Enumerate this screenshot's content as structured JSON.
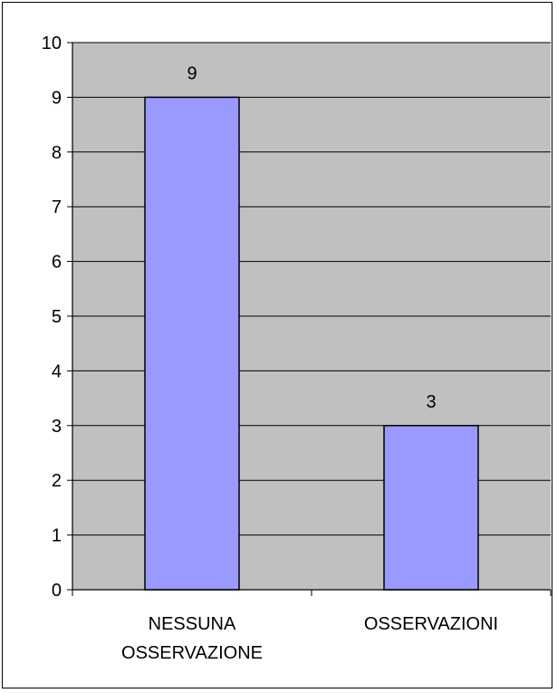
{
  "chart_data": {
    "type": "bar",
    "categories": [
      [
        "NESSUNA",
        "OSSERVAZIONE"
      ],
      [
        "OSSERVAZIONI"
      ]
    ],
    "values": [
      9,
      3
    ],
    "data_labels": [
      "9",
      "3"
    ],
    "ylim": [
      0,
      10
    ],
    "yticks": [
      0,
      1,
      2,
      3,
      4,
      5,
      6,
      7,
      8,
      9,
      10
    ],
    "grid": true,
    "legend": "none",
    "colors": {
      "bar_fill": "#9999ff",
      "bar_stroke": "#000000",
      "plot_background": "#c0c0c0",
      "gridline": "#000000"
    }
  }
}
